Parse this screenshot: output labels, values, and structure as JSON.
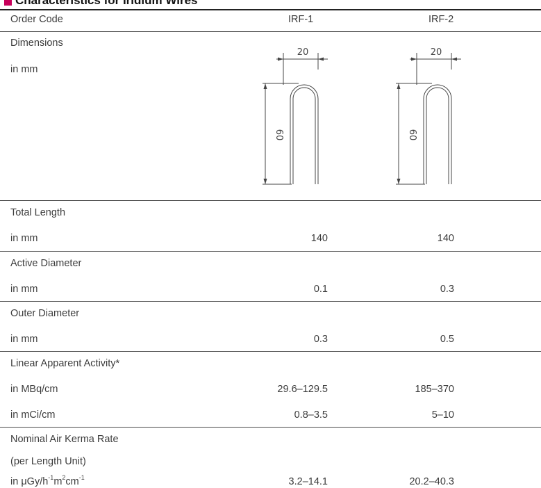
{
  "title": "Characteristics for Iridium Wires",
  "header": {
    "label": "Order Code",
    "col1": "IRF-1",
    "col2": "IRF-2"
  },
  "dimensions": {
    "label": "Dimensions",
    "unit": "in mm",
    "width_label": "20",
    "height_label": "60"
  },
  "rows": {
    "total_length": {
      "label": "Total Length",
      "unit": "in mm",
      "v1": "140",
      "v2": "140"
    },
    "active_diameter": {
      "label": "Active Diameter",
      "unit": "in mm",
      "v1": "0.1",
      "v2": "0.3"
    },
    "outer_diameter": {
      "label": "Outer Diameter",
      "unit": "in mm",
      "v1": "0.3",
      "v2": "0.5"
    },
    "linear_activity": {
      "label": "Linear Apparent Activity*",
      "unit_mbq": "in MBq/cm",
      "mbq_v1": "29.6–129.5",
      "mbq_v2": "185–370",
      "unit_mci": "in mCi/cm",
      "mci_v1": "0.8–3.5",
      "mci_v2": "5–10"
    },
    "air_kerma": {
      "label": "Nominal Air Kerma Rate",
      "label2": "(per Length Unit)",
      "unit_prefix": "in μGy/h",
      "sup1": "-1",
      "unit_mid": "m",
      "sup2": "2",
      "unit_cm": "cm",
      "sup3": "-1",
      "v1": "3.2–14.1",
      "v2": "20.2–40.3"
    }
  }
}
